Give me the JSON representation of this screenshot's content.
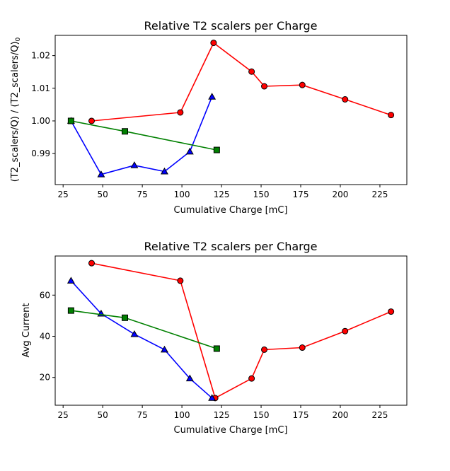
{
  "chart_data": [
    {
      "type": "line",
      "title": "Relative T2 scalers per Charge",
      "xlabel": "Cumulative Charge [mC]",
      "ylabel_main": "(T2_scalers/Q) / (T2_scalers/Q)",
      "ylabel_sub": "0",
      "xlim": [
        20,
        242
      ],
      "ylim": [
        0.9805,
        1.0262
      ],
      "xticks": [
        25,
        50,
        75,
        100,
        125,
        150,
        175,
        200,
        225
      ],
      "yticks": [
        0.99,
        1.0,
        1.01,
        1.02
      ],
      "ytick_labels": [
        "0.99",
        "1.00",
        "1.01",
        "1.02"
      ],
      "grid": false,
      "series": [
        {
          "color": "#ff0000",
          "marker": "circle",
          "x": [
            43,
            99,
            120,
            144,
            152,
            176,
            203,
            232
          ],
          "y": [
            1.0,
            1.0026,
            1.0239,
            1.0151,
            1.0106,
            1.011,
            1.0066,
            1.0018
          ]
        },
        {
          "color": "#0000ff",
          "marker": "triangle",
          "x": [
            30,
            49,
            70,
            89,
            105,
            119
          ],
          "y": [
            1.0,
            0.9836,
            0.9864,
            0.9845,
            0.9906,
            1.0074
          ]
        },
        {
          "color": "#008000",
          "marker": "square",
          "x": [
            30,
            64,
            122
          ],
          "y": [
            1.0,
            0.9968,
            0.9911
          ]
        }
      ]
    },
    {
      "type": "line",
      "title": "Relative T2 scalers per Charge",
      "xlabel": "Cumulative Charge [mC]",
      "ylabel": "Avg Current",
      "xlim": [
        20,
        242
      ],
      "ylim": [
        6.5,
        79
      ],
      "xticks": [
        25,
        50,
        75,
        100,
        125,
        150,
        175,
        200,
        225
      ],
      "yticks": [
        20,
        40,
        60
      ],
      "ytick_labels": [
        "20",
        "40",
        "60"
      ],
      "grid": false,
      "series": [
        {
          "color": "#ff0000",
          "marker": "circle",
          "x": [
            43,
            99,
            121,
            144,
            152,
            176,
            203,
            232
          ],
          "y": [
            75.5,
            67,
            10,
            19.5,
            33.5,
            34.5,
            42.5,
            52
          ]
        },
        {
          "color": "#0000ff",
          "marker": "triangle",
          "x": [
            30,
            49,
            70,
            89,
            105,
            119
          ],
          "y": [
            67,
            51,
            41,
            33.5,
            19.5,
            10
          ]
        },
        {
          "color": "#008000",
          "marker": "square",
          "x": [
            30,
            64,
            122
          ],
          "y": [
            52.5,
            49,
            34
          ]
        }
      ]
    }
  ]
}
